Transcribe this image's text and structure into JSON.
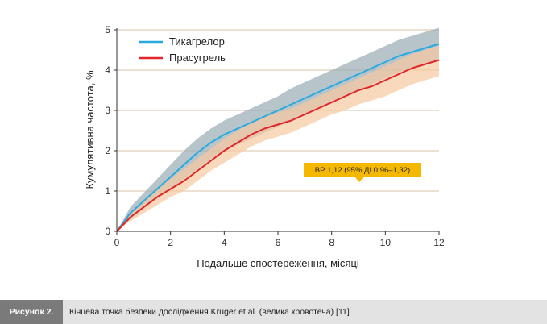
{
  "chart_data": {
    "type": "line",
    "xlabel": "Подальше спостереження, місяці",
    "ylabel": "Кумулятивна частота, %",
    "xlim": [
      0,
      12
    ],
    "ylim": [
      0,
      5
    ],
    "x_ticks": [
      "0",
      "2",
      "4",
      "6",
      "8",
      "10",
      "12"
    ],
    "y_ticks": [
      "0",
      "1",
      "2",
      "3",
      "4",
      "5"
    ],
    "grid": "horizontal",
    "legend_position": "top-left",
    "x": [
      0,
      0.5,
      1,
      1.5,
      2,
      2.5,
      3,
      3.5,
      4,
      4.5,
      5,
      5.5,
      6,
      6.5,
      7,
      7.5,
      8,
      8.5,
      9,
      9.5,
      10,
      10.5,
      11,
      11.5,
      12
    ],
    "series": [
      {
        "name": "Тикагрелор",
        "color": "#29a9e1",
        "band_color": "#9fb0b8",
        "values": [
          0,
          0.45,
          0.75,
          1.05,
          1.35,
          1.65,
          1.95,
          2.2,
          2.4,
          2.55,
          2.7,
          2.85,
          3.0,
          3.15,
          3.3,
          3.45,
          3.6,
          3.75,
          3.9,
          4.05,
          4.2,
          4.35,
          4.45,
          4.55,
          4.65
        ],
        "lower": [
          0,
          0.3,
          0.55,
          0.8,
          1.05,
          1.3,
          1.55,
          1.8,
          2.0,
          2.15,
          2.3,
          2.45,
          2.6,
          2.75,
          2.9,
          3.05,
          3.2,
          3.35,
          3.5,
          3.65,
          3.8,
          3.95,
          4.05,
          4.15,
          4.25
        ],
        "upper": [
          0,
          0.6,
          0.95,
          1.3,
          1.65,
          2.0,
          2.3,
          2.55,
          2.75,
          2.9,
          3.05,
          3.2,
          3.35,
          3.55,
          3.7,
          3.85,
          4.0,
          4.15,
          4.3,
          4.45,
          4.6,
          4.75,
          4.85,
          4.95,
          5.05
        ]
      },
      {
        "name": "Прасугрель",
        "color": "#e0262a",
        "band_color": "#f7c9a0",
        "values": [
          0,
          0.35,
          0.6,
          0.85,
          1.05,
          1.25,
          1.5,
          1.75,
          2.0,
          2.2,
          2.4,
          2.55,
          2.65,
          2.75,
          2.9,
          3.05,
          3.2,
          3.35,
          3.5,
          3.6,
          3.75,
          3.9,
          4.05,
          4.15,
          4.25
        ],
        "lower": [
          0,
          0.25,
          0.45,
          0.65,
          0.85,
          1.0,
          1.25,
          1.5,
          1.7,
          1.9,
          2.1,
          2.25,
          2.35,
          2.45,
          2.6,
          2.75,
          2.9,
          3.0,
          3.15,
          3.25,
          3.35,
          3.5,
          3.65,
          3.75,
          3.85
        ],
        "upper": [
          0,
          0.45,
          0.75,
          1.05,
          1.3,
          1.55,
          1.8,
          2.05,
          2.3,
          2.5,
          2.7,
          2.85,
          2.95,
          3.05,
          3.2,
          3.35,
          3.5,
          3.65,
          3.8,
          3.95,
          4.1,
          4.25,
          4.4,
          4.5,
          4.6
        ]
      }
    ],
    "annotation": {
      "text": "ВР 1,12 (95% ДІ 0,96–1,32)",
      "background": "#f5b800"
    }
  },
  "caption": {
    "label": "Рисунок 2.",
    "text": "Кінцева точка безпеки дослідження Krüger et al. (велика кровотеча) [11]"
  }
}
